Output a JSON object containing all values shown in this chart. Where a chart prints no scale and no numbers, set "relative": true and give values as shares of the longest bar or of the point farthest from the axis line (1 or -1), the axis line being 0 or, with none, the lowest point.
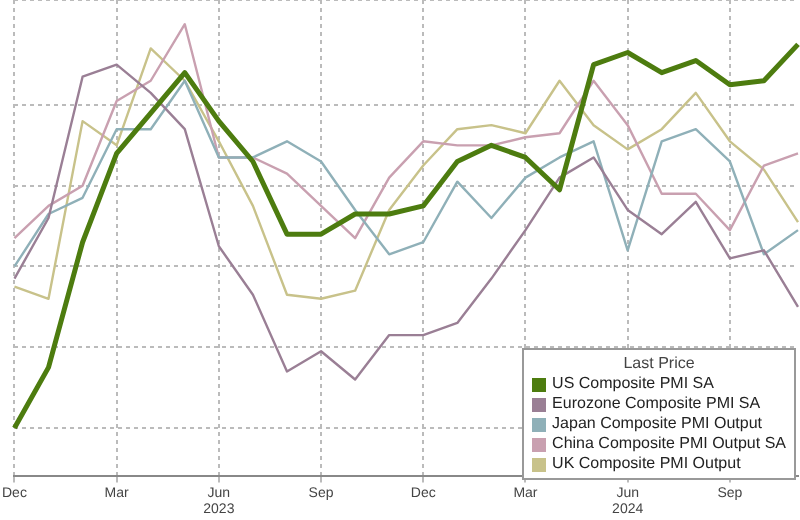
{
  "chart_data": {
    "type": "line",
    "relative": true,
    "legend_title": "Last Price",
    "legend": "bottom right",
    "grid": true,
    "marker": "none",
    "line_style": "solid",
    "categories": [
      "Dec",
      null,
      null,
      "Mar",
      null,
      null,
      "Jun 2023",
      null,
      null,
      "Sep",
      null,
      null,
      "Dec",
      null,
      null,
      "Mar",
      null,
      null,
      "Jun 2024",
      null,
      null,
      "Sep",
      null,
      null
    ],
    "series": [
      {
        "name": "US Composite PMI SA",
        "color": "#4d7c0f",
        "values": [
          0,
          0.15,
          0.46,
          0.68,
          0.78,
          0.88,
          0.76,
          0.66,
          0.48,
          0.48,
          0.53,
          0.53,
          0.55,
          0.66,
          0.7,
          0.67,
          0.59,
          0.9,
          0.93,
          0.88,
          0.91,
          0.85,
          0.86,
          0.95
        ]
      },
      {
        "name": "Eurozone Composite PMI SA",
        "color": "#9a7f95",
        "values": [
          0.37,
          0.52,
          0.87,
          0.9,
          0.83,
          0.74,
          0.45,
          0.33,
          0.14,
          0.19,
          0.12,
          0.23,
          0.23,
          0.26,
          0.37,
          0.49,
          0.62,
          0.67,
          0.54,
          0.48,
          0.56,
          0.42,
          0.44,
          0.3
        ]
      },
      {
        "name": "Japan Composite PMI Output",
        "color": "#8fb0b8",
        "values": [
          0.4,
          0.53,
          0.57,
          0.74,
          0.74,
          0.86,
          0.67,
          0.67,
          0.71,
          0.66,
          0.54,
          0.43,
          0.46,
          0.61,
          0.52,
          0.62,
          0.67,
          0.71,
          0.44,
          0.71,
          0.74,
          0.66,
          0.43,
          0.49
        ]
      },
      {
        "name": "China Composite PMI Output SA",
        "color": "#c9a0b0",
        "values": [
          0.47,
          0.55,
          0.6,
          0.81,
          0.86,
          1,
          0.67,
          0.67,
          0.63,
          0.55,
          0.47,
          0.62,
          0.71,
          0.7,
          0.7,
          0.72,
          0.73,
          0.86,
          0.75,
          0.58,
          0.58,
          0.49,
          0.65,
          0.68
        ]
      },
      {
        "name": "UK Composite PMI Output",
        "color": "#c8c28a",
        "values": [
          0.35,
          0.32,
          0.76,
          0.7,
          0.94,
          0.86,
          0.71,
          0.55,
          0.33,
          0.32,
          0.34,
          0.54,
          0.65,
          0.74,
          0.75,
          0.73,
          0.86,
          0.75,
          0.69,
          0.74,
          0.83,
          0.71,
          0.64,
          0.51
        ]
      }
    ]
  }
}
